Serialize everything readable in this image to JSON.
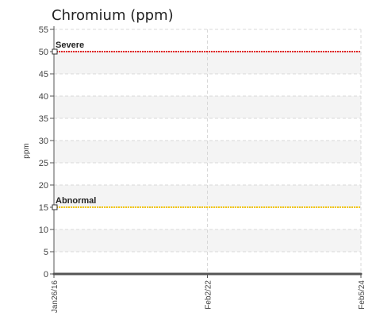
{
  "chart_data": {
    "type": "line",
    "title": "Chromium (ppm)",
    "ylabel": "ppm",
    "xlabel": "",
    "ylim": [
      0,
      55
    ],
    "yticks": [
      0,
      5,
      10,
      15,
      20,
      25,
      30,
      35,
      40,
      45,
      50,
      55
    ],
    "categories": [
      "Jan26/16",
      "Feb2/22",
      "Feb5/24"
    ],
    "grid": true,
    "series": [
      {
        "name": "",
        "values": [
          0,
          0,
          0
        ],
        "color": "#555555"
      }
    ],
    "thresholds": [
      {
        "label": "Severe",
        "value": 50,
        "color": "#e02020"
      },
      {
        "label": "Abnormal",
        "value": 15,
        "color": "#f2c500"
      }
    ]
  }
}
